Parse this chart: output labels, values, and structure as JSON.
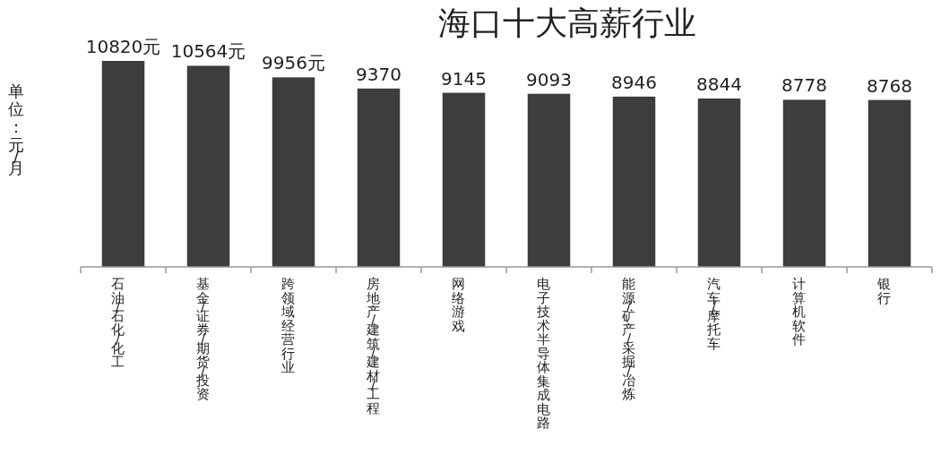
{
  "chart_data": {
    "type": "bar",
    "title": "海口十大高薪行业",
    "ylabel": "单位：元/月",
    "categories": [
      "石油/石化/化工",
      "基金/证券/期货/投资",
      "跨领域经营行业",
      "房地产/建筑/建材/工程",
      "网络游戏",
      "电子技术半导体集成电路",
      "能源/矿产/采掘/冶炼",
      "汽车/摩托车",
      "计算机软件",
      "银行"
    ],
    "values": [
      10820,
      10564,
      9956,
      9370,
      9145,
      9093,
      8946,
      8844,
      8778,
      8768
    ],
    "value_labels": [
      "10820元",
      "10564元",
      "9956元",
      "9370",
      "9145",
      "9093",
      "8946",
      "8844",
      "8778",
      "8768"
    ],
    "color": "#3d3d3d"
  }
}
